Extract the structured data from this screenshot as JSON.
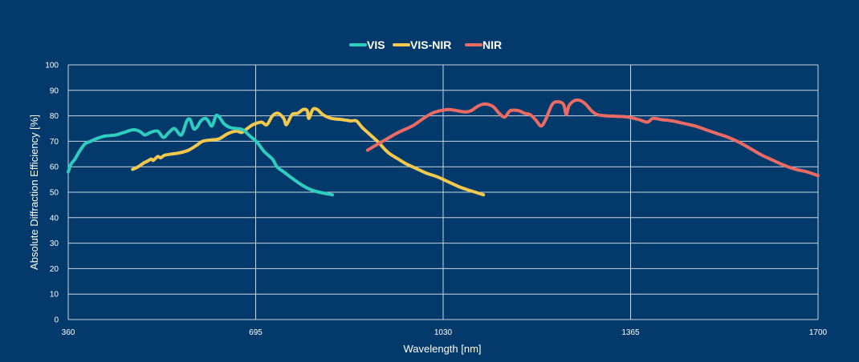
{
  "chart_data": {
    "type": "line",
    "title": "",
    "xlabel": "Wavelength [nm]",
    "ylabel": "Absolute Diffraction Efficiency [%]",
    "xlim": [
      360,
      1700
    ],
    "ylim": [
      0,
      100
    ],
    "x_ticks": [
      360,
      695,
      1030,
      1365,
      1700
    ],
    "y_ticks": [
      0,
      10,
      20,
      30,
      40,
      50,
      60,
      70,
      80,
      90,
      100
    ],
    "grid": true,
    "legend_position": "top-center",
    "colors": {
      "background": "#033A6B",
      "grid": "#C9D6E3",
      "axis": "#FFFFFF"
    },
    "series": [
      {
        "name": "VIS",
        "color": "#2ECDBF",
        "points": [
          [
            360,
            58
          ],
          [
            365,
            61
          ],
          [
            372,
            63
          ],
          [
            380,
            66
          ],
          [
            390,
            69
          ],
          [
            400,
            70
          ],
          [
            410,
            71
          ],
          [
            425,
            72
          ],
          [
            445,
            72.5
          ],
          [
            460,
            73.5
          ],
          [
            475,
            74.5
          ],
          [
            487,
            74
          ],
          [
            497,
            72.5
          ],
          [
            507,
            73.5
          ],
          [
            520,
            74
          ],
          [
            530,
            71.5
          ],
          [
            540,
            73.5
          ],
          [
            550,
            75
          ],
          [
            562,
            72.5
          ],
          [
            572,
            78
          ],
          [
            578,
            78.5
          ],
          [
            584,
            75
          ],
          [
            590,
            75.5
          ],
          [
            597,
            78
          ],
          [
            605,
            79
          ],
          [
            610,
            78
          ],
          [
            617,
            76
          ],
          [
            624,
            80
          ],
          [
            630,
            79.5
          ],
          [
            638,
            77
          ],
          [
            648,
            75.5
          ],
          [
            660,
            75
          ],
          [
            672,
            74.5
          ],
          [
            685,
            72
          ],
          [
            698,
            69.5
          ],
          [
            710,
            66
          ],
          [
            725,
            63
          ],
          [
            733,
            60
          ],
          [
            745,
            58
          ],
          [
            760,
            55.5
          ],
          [
            780,
            52.5
          ],
          [
            800,
            50.5
          ],
          [
            832,
            49
          ]
        ]
      },
      {
        "name": "VIS-NIR",
        "color": "#F2C94C",
        "points": [
          [
            475,
            59
          ],
          [
            485,
            60
          ],
          [
            495,
            61.5
          ],
          [
            500,
            62
          ],
          [
            508,
            63
          ],
          [
            512,
            62.5
          ],
          [
            520,
            64
          ],
          [
            525,
            63.5
          ],
          [
            532,
            64.5
          ],
          [
            545,
            65
          ],
          [
            560,
            65.5
          ],
          [
            575,
            66.5
          ],
          [
            590,
            68.5
          ],
          [
            600,
            70
          ],
          [
            615,
            70.5
          ],
          [
            630,
            71
          ],
          [
            645,
            73
          ],
          [
            660,
            74
          ],
          [
            670,
            73.5
          ],
          [
            680,
            75
          ],
          [
            690,
            76.5
          ],
          [
            705,
            77.5
          ],
          [
            715,
            76.5
          ],
          [
            725,
            80
          ],
          [
            735,
            81
          ],
          [
            745,
            79
          ],
          [
            750,
            76.5
          ],
          [
            760,
            80.5
          ],
          [
            770,
            81
          ],
          [
            780,
            82.5
          ],
          [
            787,
            82
          ],
          [
            790,
            79
          ],
          [
            797,
            82.5
          ],
          [
            805,
            82.5
          ],
          [
            815,
            80.5
          ],
          [
            830,
            79
          ],
          [
            850,
            78.5
          ],
          [
            865,
            78
          ],
          [
            875,
            78
          ],
          [
            885,
            75.5
          ],
          [
            900,
            72.5
          ],
          [
            915,
            69.5
          ],
          [
            925,
            67
          ],
          [
            935,
            65
          ],
          [
            950,
            63
          ],
          [
            965,
            61
          ],
          [
            985,
            59
          ],
          [
            1000,
            57.5
          ],
          [
            1020,
            56
          ],
          [
            1040,
            54
          ],
          [
            1060,
            52
          ],
          [
            1080,
            50.5
          ],
          [
            1102,
            49
          ]
        ]
      },
      {
        "name": "NIR",
        "color": "#EC6A64",
        "points": [
          [
            895,
            66.5
          ],
          [
            910,
            68.5
          ],
          [
            930,
            71
          ],
          [
            950,
            73.5
          ],
          [
            975,
            76
          ],
          [
            995,
            79
          ],
          [
            1010,
            81
          ],
          [
            1025,
            82
          ],
          [
            1040,
            82.5
          ],
          [
            1055,
            82
          ],
          [
            1070,
            81.5
          ],
          [
            1080,
            82
          ],
          [
            1090,
            83.5
          ],
          [
            1100,
            84.5
          ],
          [
            1110,
            84.5
          ],
          [
            1120,
            83.5
          ],
          [
            1130,
            81
          ],
          [
            1140,
            79.5
          ],
          [
            1150,
            82
          ],
          [
            1165,
            82
          ],
          [
            1175,
            81
          ],
          [
            1185,
            80.5
          ],
          [
            1195,
            78.5
          ],
          [
            1205,
            76
          ],
          [
            1213,
            78.5
          ],
          [
            1225,
            84.5
          ],
          [
            1235,
            85.5
          ],
          [
            1245,
            84.5
          ],
          [
            1250,
            80.5
          ],
          [
            1255,
            84
          ],
          [
            1265,
            86
          ],
          [
            1275,
            86
          ],
          [
            1285,
            84.5
          ],
          [
            1295,
            82
          ],
          [
            1305,
            80.5
          ],
          [
            1320,
            80
          ],
          [
            1340,
            79.8
          ],
          [
            1360,
            79.5
          ],
          [
            1380,
            78.5
          ],
          [
            1395,
            77.5
          ],
          [
            1405,
            79
          ],
          [
            1420,
            78.5
          ],
          [
            1440,
            78
          ],
          [
            1460,
            77
          ],
          [
            1480,
            76
          ],
          [
            1500,
            74.5
          ],
          [
            1520,
            73
          ],
          [
            1540,
            71.5
          ],
          [
            1560,
            69.5
          ],
          [
            1580,
            67
          ],
          [
            1600,
            64.5
          ],
          [
            1620,
            62.5
          ],
          [
            1640,
            60.5
          ],
          [
            1660,
            59
          ],
          [
            1680,
            58
          ],
          [
            1700,
            56.5
          ]
        ]
      }
    ]
  }
}
